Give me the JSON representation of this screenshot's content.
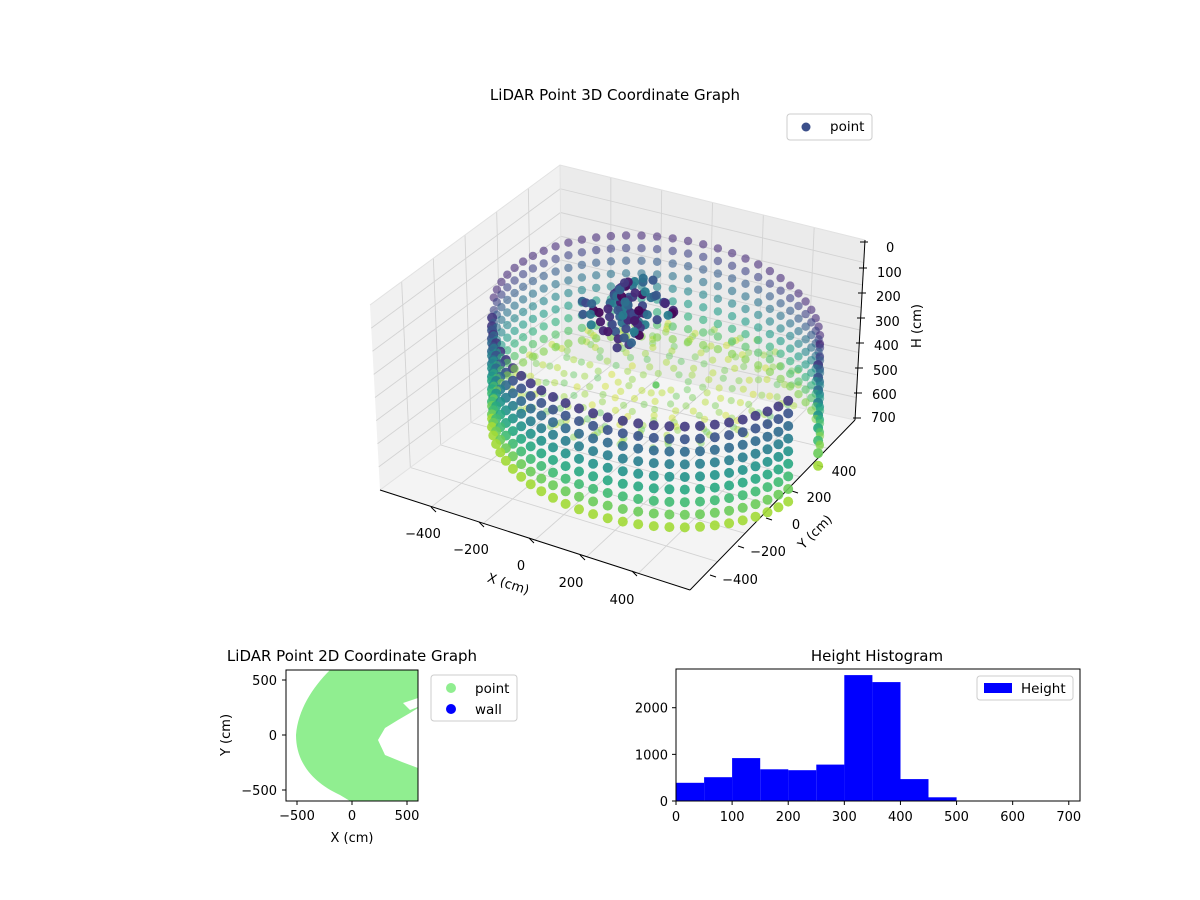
{
  "chart_data": [
    {
      "type": "scatter3d",
      "title": "LiDAR Point 3D Coordinate Graph",
      "xlabel": "X (cm)",
      "ylabel": "Y (cm)",
      "zlabel": "H (cm)",
      "xticks": [
        "−400",
        "−200",
        "0",
        "200",
        "400"
      ],
      "yticks": [
        "−400",
        "−200",
        "0",
        "200",
        "400"
      ],
      "zticks": [
        "0",
        "100",
        "200",
        "300",
        "400",
        "500",
        "600",
        "700"
      ],
      "xlim": [
        -600,
        600
      ],
      "ylim": [
        -600,
        600
      ],
      "zlim": [
        700,
        0
      ],
      "zaxis_inverted": true,
      "radius": 560,
      "colormap": "viridis",
      "legend": {
        "labels": [
          "point"
        ],
        "colors": [
          "#3b4f8a"
        ],
        "position": "upper right"
      },
      "grid": true
    },
    {
      "type": "scatter",
      "title": "LiDAR Point 2D Coordinate Graph",
      "xlabel": "X (cm)",
      "ylabel": "Y (cm)",
      "xticks": [
        "−500",
        "0",
        "500"
      ],
      "yticks": [
        "500",
        "0",
        "−500"
      ],
      "xlim": [
        -600,
        600
      ],
      "ylim": [
        -600,
        600
      ],
      "series": [
        {
          "name": "point",
          "color": "#90ee90"
        },
        {
          "name": "wall",
          "color": "#0000ff"
        }
      ],
      "legend_position": "outside right"
    },
    {
      "type": "bar",
      "title": "Height Histogram",
      "xlabel": "",
      "ylabel": "",
      "bin_edges": [
        0,
        50,
        100,
        150,
        200,
        250,
        300,
        350,
        400,
        450,
        500,
        550,
        600,
        650,
        700
      ],
      "values": [
        390,
        510,
        920,
        680,
        660,
        780,
        2700,
        2550,
        470,
        80,
        0,
        0,
        0,
        0
      ],
      "xticks": [
        "0",
        "100",
        "200",
        "300",
        "400",
        "500",
        "600",
        "700"
      ],
      "yticks": [
        "0",
        "1000",
        "2000"
      ],
      "xlim": [
        0,
        720
      ],
      "ylim": [
        0,
        2830
      ],
      "color": "#0000ff",
      "legend": {
        "labels": [
          "Height"
        ],
        "position": "upper right"
      }
    }
  ]
}
